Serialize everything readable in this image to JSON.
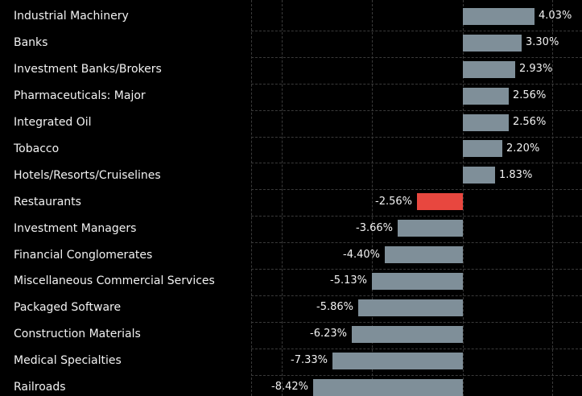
{
  "chart_data": {
    "type": "bar",
    "orientation": "horizontal",
    "categories": [
      "Industrial Machinery",
      "Banks",
      "Investment Banks/Brokers",
      "Pharmaceuticals: Major",
      "Integrated Oil",
      "Tobacco",
      "Hotels/Resorts/Cruiselines",
      "Restaurants",
      "Investment Managers",
      "Financial Conglomerates",
      "Miscellaneous Commercial Services",
      "Packaged Software",
      "Construction Materials",
      "Medical Specialties",
      "Railroads"
    ],
    "values": [
      4.03,
      3.3,
      2.93,
      2.56,
      2.56,
      2.2,
      1.83,
      -2.56,
      -3.66,
      -4.4,
      -5.13,
      -5.86,
      -6.23,
      -7.33,
      -8.42
    ],
    "value_labels": [
      "4.03%",
      "3.30%",
      "2.93%",
      "2.56%",
      "2.56%",
      "2.20%",
      "1.83%",
      "-2.56%",
      "-3.66%",
      "-4.40%",
      "-5.13%",
      "-5.86%",
      "-6.23%",
      "-7.33%",
      "-8.42%"
    ],
    "highlight_index": 7,
    "colors": {
      "bar": "#7f8f99",
      "highlight": "#e8473f",
      "background": "#000000",
      "grid": "#3a3a3a",
      "text": "#f2f2f2"
    },
    "grid": true,
    "title": "",
    "xlabel": "",
    "ylabel": ""
  }
}
